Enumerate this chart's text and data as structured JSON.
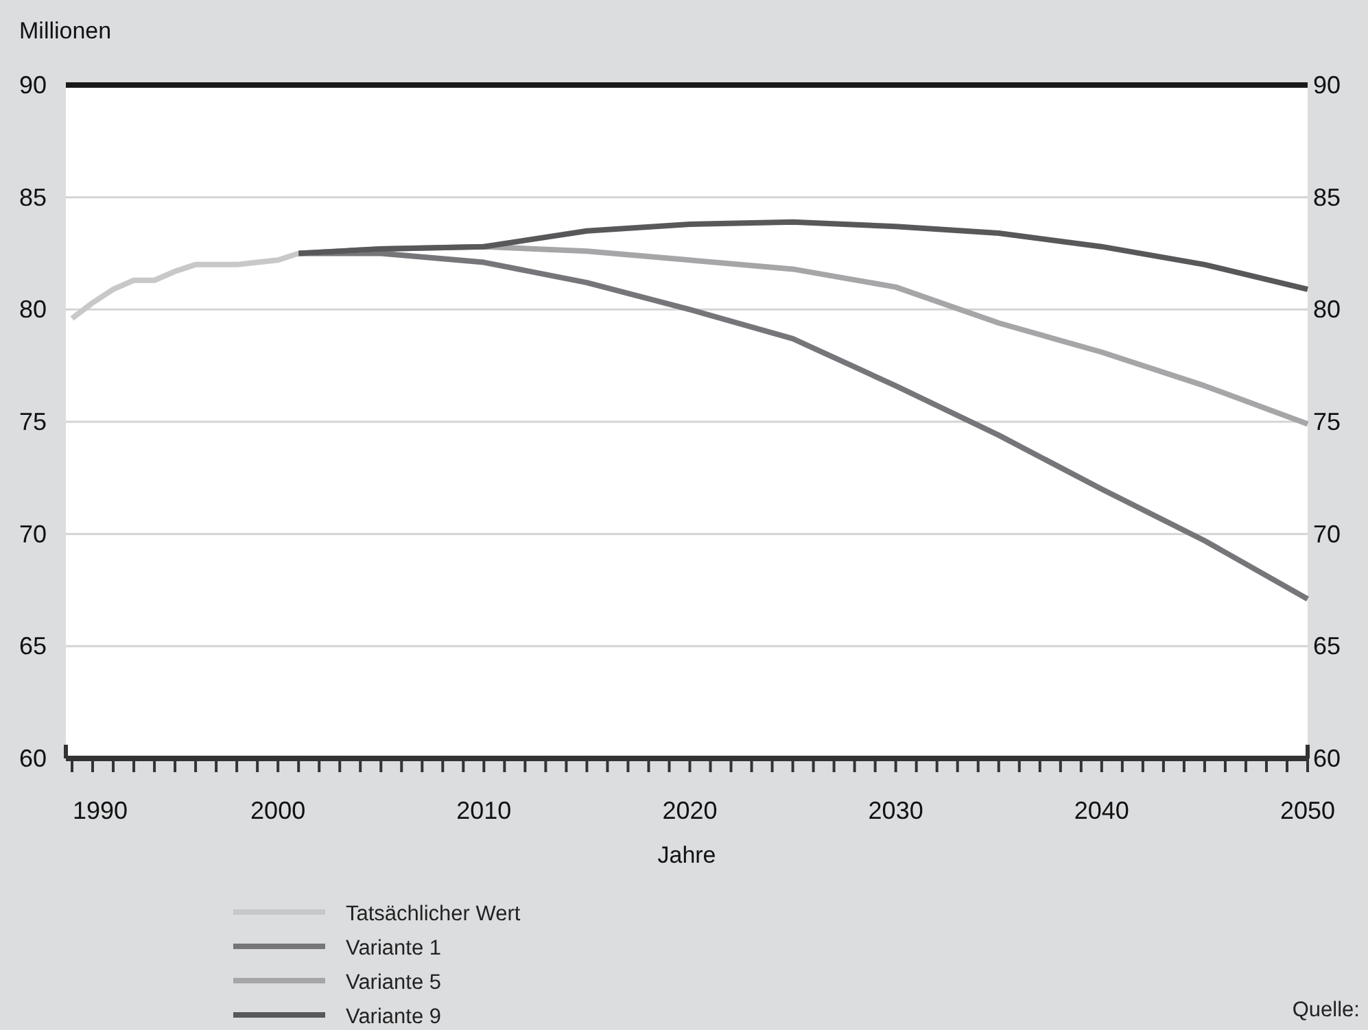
{
  "chart_data": {
    "type": "line",
    "ylabel": "Millionen",
    "xlabel": "Jahre",
    "xlim": [
      1989.7,
      2050
    ],
    "xticks": [
      1990,
      {
        "value": 1991,
        "label": null
      },
      {
        "value": 1992,
        "label": null
      },
      {
        "value": 1993,
        "label": null
      },
      {
        "value": 1994,
        "label": null
      },
      {
        "value": 1995,
        "label": null
      },
      {
        "value": 1996,
        "label": null
      },
      {
        "value": 1997,
        "label": null
      },
      {
        "value": 1998,
        "label": null
      },
      {
        "value": 1999,
        "label": null
      },
      2000,
      {
        "value": 2001,
        "label": null
      },
      {
        "value": 2002,
        "label": null
      },
      {
        "value": 2003,
        "label": null
      },
      {
        "value": 2004,
        "label": null
      },
      {
        "value": 2005,
        "label": null
      },
      {
        "value": 2006,
        "label": null
      },
      {
        "value": 2007,
        "label": null
      },
      {
        "value": 2008,
        "label": null
      },
      {
        "value": 2009,
        "label": null
      },
      2010,
      {
        "value": 2011,
        "label": null
      },
      {
        "value": 2012,
        "label": null
      },
      {
        "value": 2013,
        "label": null
      },
      {
        "value": 2014,
        "label": null
      },
      {
        "value": 2015,
        "label": null
      },
      {
        "value": 2016,
        "label": null
      },
      {
        "value": 2017,
        "label": null
      },
      {
        "value": 2018,
        "label": null
      },
      {
        "value": 2019,
        "label": null
      },
      2020,
      {
        "value": 2021,
        "label": null
      },
      {
        "value": 2022,
        "label": null
      },
      {
        "value": 2023,
        "label": null
      },
      {
        "value": 2024,
        "label": null
      },
      {
        "value": 2025,
        "label": null
      },
      {
        "value": 2026,
        "label": null
      },
      {
        "value": 2027,
        "label": null
      },
      {
        "value": 2028,
        "label": null
      },
      {
        "value": 2029,
        "label": null
      },
      2030,
      {
        "value": 2031,
        "label": null
      },
      {
        "value": 2032,
        "label": null
      },
      {
        "value": 2033,
        "label": null
      },
      {
        "value": 2034,
        "label": null
      },
      {
        "value": 2035,
        "label": null
      },
      {
        "value": 2036,
        "label": null
      },
      {
        "value": 2037,
        "label": null
      },
      {
        "value": 2038,
        "label": null
      },
      {
        "value": 2039,
        "label": null
      },
      2040,
      {
        "value": 2041,
        "label": null
      },
      {
        "value": 2042,
        "label": null
      },
      {
        "value": 2043,
        "label": null
      },
      {
        "value": 2044,
        "label": null
      },
      {
        "value": 2045,
        "label": null
      },
      {
        "value": 2046,
        "label": null
      },
      {
        "value": 2047,
        "label": null
      },
      {
        "value": 2048,
        "label": null
      },
      {
        "value": 2049,
        "label": null
      },
      2050
    ],
    "ylim": [
      60,
      90
    ],
    "yticks": [
      60,
      65,
      70,
      75,
      80,
      85,
      90
    ],
    "y2lim": [
      60,
      90
    ],
    "y2ticks": [
      60,
      65,
      70,
      75,
      80,
      85,
      90
    ],
    "grid": "y",
    "legend": "bottom",
    "line_style": "solid",
    "series": [
      {
        "name": "Tatsächlicher Wert",
        "color": "#c8c8c8",
        "x": [
          1990,
          1991,
          1992,
          1993,
          1994,
          1995,
          1996,
          1997,
          1998,
          1999,
          2000,
          2001
        ],
        "values": [
          79.6,
          80.3,
          80.9,
          81.3,
          81.3,
          81.7,
          82.0,
          82.0,
          82.0,
          82.1,
          82.2,
          82.5
        ]
      },
      {
        "name": "Variante 1",
        "color": "#76767a",
        "x": [
          2001,
          2005,
          2010,
          2015,
          2020,
          2025,
          2030,
          2035,
          2040,
          2045,
          2050
        ],
        "values": [
          82.5,
          82.5,
          82.1,
          81.2,
          80.0,
          78.7,
          76.6,
          74.4,
          72.0,
          69.7,
          67.1
        ]
      },
      {
        "name": "Variante 5",
        "color": "#a6a6a8",
        "x": [
          2001,
          2005,
          2010,
          2015,
          2020,
          2025,
          2030,
          2035,
          2040,
          2045,
          2050
        ],
        "values": [
          82.5,
          82.7,
          82.8,
          82.6,
          82.2,
          81.8,
          81.0,
          79.4,
          78.1,
          76.6,
          74.9
        ]
      },
      {
        "name": "Variante 9",
        "color": "#58585a",
        "x": [
          2001,
          2005,
          2010,
          2015,
          2020,
          2025,
          2030,
          2035,
          2040,
          2045,
          2050
        ],
        "values": [
          82.5,
          82.7,
          82.8,
          83.5,
          83.8,
          83.9,
          83.7,
          83.4,
          82.8,
          82.0,
          80.9
        ]
      }
    ],
    "annotations": [
      "Quelle:"
    ]
  }
}
